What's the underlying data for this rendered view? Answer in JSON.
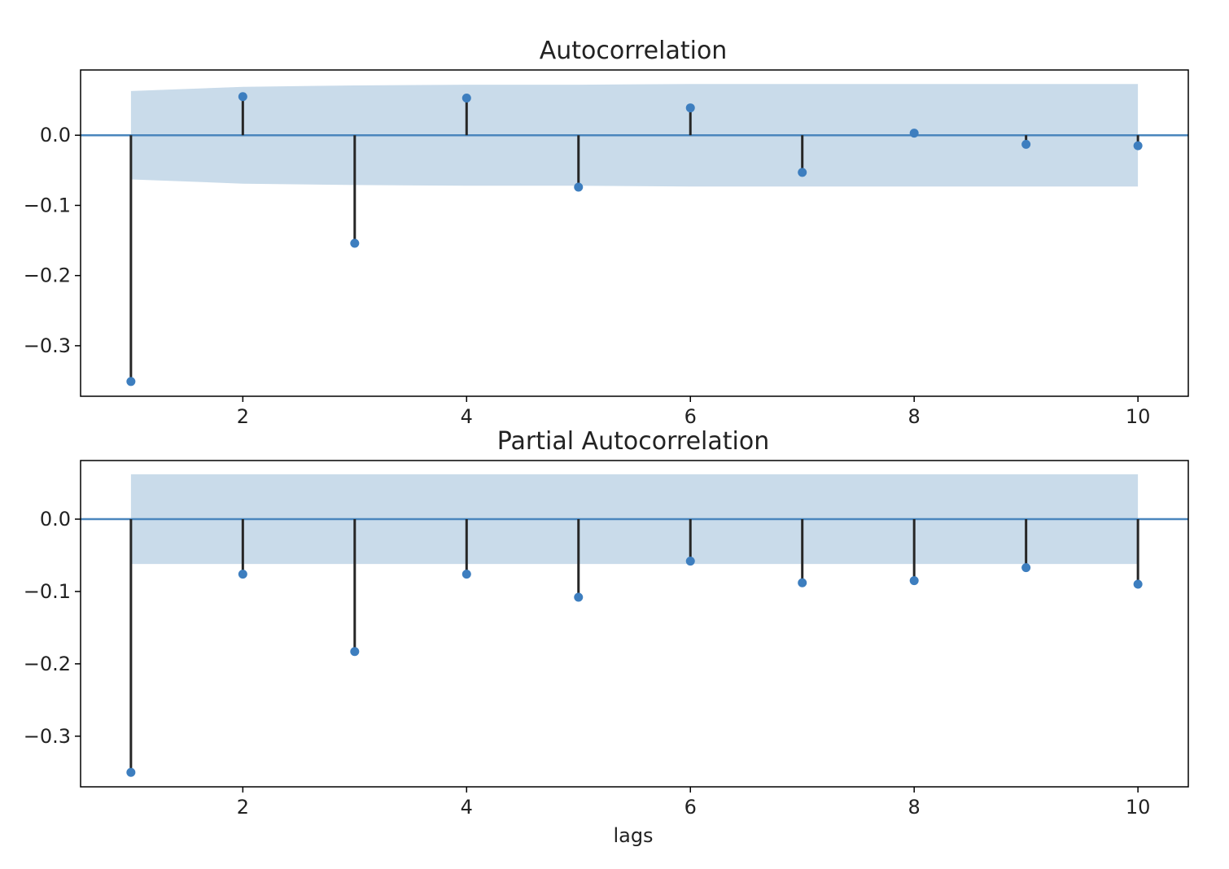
{
  "colors": {
    "band": "#c9dbea",
    "zero_line": "#4a86bd",
    "stem": "#262626",
    "marker": "#3d7ebf",
    "frame": "#000000"
  },
  "chart_data": [
    {
      "type": "stem",
      "title": "Autocorrelation",
      "xlabel": "",
      "ylabel": "",
      "xlim": [
        0.55,
        10.45
      ],
      "ylim": [
        -0.372,
        0.093
      ],
      "xticks": [
        2,
        4,
        6,
        8,
        10
      ],
      "yticks": [
        -0.3,
        -0.2,
        -0.1,
        0.0
      ],
      "ytick_labels": [
        "−0.3",
        "−0.2",
        "−0.1",
        "0.0"
      ],
      "grid": false,
      "lags": [
        1,
        2,
        3,
        4,
        5,
        6,
        7,
        8,
        9,
        10
      ],
      "values": [
        -0.351,
        0.055,
        -0.154,
        0.053,
        -0.074,
        0.039,
        -0.053,
        0.003,
        -0.013,
        -0.015
      ],
      "confidence_band": {
        "x": [
          1,
          2,
          3,
          4,
          5,
          6,
          7,
          8,
          9,
          10
        ],
        "upper": [
          0.063,
          0.069,
          0.071,
          0.072,
          0.072,
          0.073,
          0.073,
          0.073,
          0.073,
          0.073
        ],
        "lower": [
          -0.063,
          -0.069,
          -0.071,
          -0.072,
          -0.072,
          -0.073,
          -0.073,
          -0.073,
          -0.073,
          -0.073
        ]
      }
    },
    {
      "type": "stem",
      "title": "Partial Autocorrelation",
      "xlabel": "lags",
      "ylabel": "",
      "xlim": [
        0.55,
        10.45
      ],
      "ylim": [
        -0.37,
        0.081
      ],
      "xticks": [
        2,
        4,
        6,
        8,
        10
      ],
      "yticks": [
        -0.3,
        -0.2,
        -0.1,
        0.0
      ],
      "ytick_labels": [
        "−0.3",
        "−0.2",
        "−0.1",
        "0.0"
      ],
      "grid": false,
      "lags": [
        1,
        2,
        3,
        4,
        5,
        6,
        7,
        8,
        9,
        10
      ],
      "values": [
        -0.35,
        -0.076,
        -0.183,
        -0.076,
        -0.108,
        -0.058,
        -0.088,
        -0.085,
        -0.067,
        -0.09
      ],
      "confidence_band": {
        "x": [
          1,
          2,
          3,
          4,
          5,
          6,
          7,
          8,
          9,
          10
        ],
        "upper": [
          0.062,
          0.062,
          0.062,
          0.062,
          0.062,
          0.062,
          0.062,
          0.062,
          0.062,
          0.062
        ],
        "lower": [
          -0.062,
          -0.062,
          -0.062,
          -0.062,
          -0.062,
          -0.062,
          -0.062,
          -0.062,
          -0.062,
          -0.062
        ]
      }
    }
  ]
}
